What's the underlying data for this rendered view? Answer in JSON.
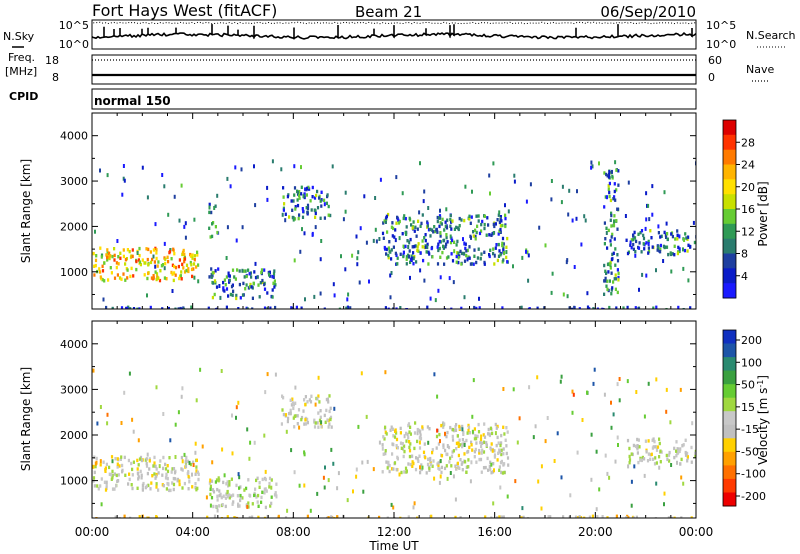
{
  "header": {
    "station": "Fort Hays West (fitACF)",
    "beam": "Beam 21",
    "date": "06/Sep/2010"
  },
  "noise_panel": {
    "left_label": "N.Sky",
    "right_label": "N.Search",
    "left_ticks": [
      "10^5",
      "10^0"
    ],
    "right_ticks": [
      "10^5",
      "10^0"
    ]
  },
  "freq_panel": {
    "left_label_1": "Freq.",
    "left_label_2": "[MHz]",
    "left_ticks": [
      "18",
      "8"
    ],
    "right_label": "Nave",
    "right_ticks": [
      "60",
      "0"
    ]
  },
  "cpid_panel": {
    "label": "CPID",
    "value": "normal 150"
  },
  "colorbars": {
    "power": {
      "title": "Power [dB]",
      "ticks": [
        "28",
        "24",
        "20",
        "16",
        "12",
        "8",
        "4"
      ],
      "colors": [
        "#dd0000",
        "#ff3300",
        "#ff7a00",
        "#ffb400",
        "#ffe000",
        "#c8e000",
        "#66cc33",
        "#2f9a55",
        "#2a7c6e",
        "#1e3fa0",
        "#0a1cc8",
        "#1a1aff"
      ]
    },
    "velocity": {
      "title": "Velocity [m s",
      "superscript": "-1",
      "title_close": "]",
      "ticks": [
        "200",
        "100",
        "50",
        "15",
        "-15",
        "-50",
        "-100",
        "-200"
      ],
      "colors": [
        "#1030c0",
        "#1d55a8",
        "#2a8a70",
        "#3aa040",
        "#66cc33",
        "#a0d840",
        "#c8c8c8",
        "#c0c0c0",
        "#ffd000",
        "#ffa000",
        "#ff7000",
        "#ff3a00",
        "#ee0000"
      ]
    }
  },
  "chart_data": [
    {
      "type": "heatmap",
      "name": "Power",
      "ylabel": "Slant Range [km]",
      "ylim": [
        180,
        4500
      ],
      "yticks": [
        1000,
        2000,
        3000,
        4000
      ],
      "xlim": [
        0,
        24
      ],
      "xticks": [
        "00:00",
        "04:00",
        "08:00",
        "12:00",
        "16:00",
        "20:00",
        "00:00"
      ],
      "grid": false,
      "features": [
        {
          "t": [
            0.0,
            4.2
          ],
          "range": [
            820,
            1560
          ],
          "level_db": 20
        },
        {
          "t": [
            4.6,
            5.0
          ],
          "range": [
            1750,
            2600
          ],
          "level_db": 8
        },
        {
          "t": [
            4.6,
            7.3
          ],
          "range": [
            450,
            1100
          ],
          "level_db": 8
        },
        {
          "t": [
            7.5,
            9.5
          ],
          "range": [
            2200,
            2900
          ],
          "level_db": 8
        },
        {
          "t": [
            11.5,
            16.5
          ],
          "range": [
            1200,
            2300
          ],
          "level_db": 8
        },
        {
          "t": [
            20.3,
            20.9
          ],
          "range": [
            500,
            3300
          ],
          "level_db": 8
        },
        {
          "t": [
            21.2,
            24.0
          ],
          "range": [
            1400,
            1950
          ],
          "level_db": 8
        },
        {
          "t": [
            0.0,
            24.0
          ],
          "range": [
            200,
            260
          ],
          "level_db": 4
        }
      ]
    },
    {
      "type": "heatmap",
      "name": "Velocity",
      "ylabel": "Slant Range [km]",
      "xlabel": "Time UT",
      "ylim": [
        180,
        4500
      ],
      "yticks": [
        1000,
        2000,
        3000,
        4000
      ],
      "xlim": [
        0,
        24
      ],
      "xticks": [
        "00:00",
        "04:00",
        "08:00",
        "12:00",
        "16:00",
        "20:00",
        "00:00"
      ],
      "grid": false,
      "features": [
        {
          "t": [
            0.0,
            4.2
          ],
          "range": [
            820,
            1560
          ],
          "level_ms": -15
        },
        {
          "t": [
            4.6,
            7.3
          ],
          "range": [
            450,
            1100
          ],
          "level_ms": 15
        },
        {
          "t": [
            7.5,
            9.5
          ],
          "range": [
            2200,
            2900
          ],
          "level_ms": -15
        },
        {
          "t": [
            11.5,
            16.5
          ],
          "range": [
            1200,
            2300
          ],
          "level_ms": -15
        },
        {
          "t": [
            21.2,
            24.0
          ],
          "range": [
            1400,
            1950
          ],
          "level_ms": -15
        },
        {
          "t": [
            0.0,
            24.0
          ],
          "range": [
            200,
            260
          ],
          "level_ms": -50
        }
      ]
    }
  ]
}
